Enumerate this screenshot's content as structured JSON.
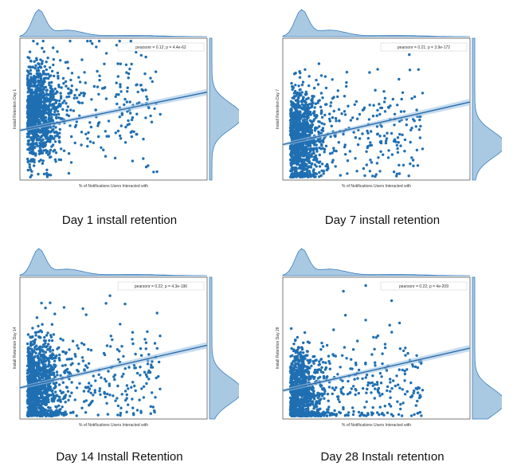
{
  "captions": [
    "Day 1 install retention",
    "Day 7 install retention",
    "Day 14 Install Retention",
    "Day 28 Instalı retentıon"
  ],
  "colors": {
    "points": "#1f6fb2",
    "kde_fill": "#a9c9e3",
    "kde_line": "#3a7fbf",
    "fit_band": "#9ec4e4"
  },
  "chart_data": [
    {
      "type": "scatter",
      "xlabel": "% of Notifications Users Interacted with",
      "ylabel": "Install Retention Day 1",
      "legend": "pearsonr = 0.12; p = 4.4e-62",
      "legend_position": "top-right",
      "grid": false,
      "fit_line": {
        "start": [
          0.0,
          0.35
        ],
        "end": [
          1.0,
          0.62
        ]
      },
      "x_marginal": "right-skewed, peak near 0.15",
      "y_marginal": "peak near 0.45"
    },
    {
      "type": "scatter",
      "xlabel": "% of Notifications Users Interacted with",
      "ylabel": "Install Retention Day 7",
      "legend": "pearsonr = 0.21; p = 3.9e-172",
      "legend_position": "top-right",
      "grid": false,
      "fit_line": {
        "start": [
          0.0,
          0.25
        ],
        "end": [
          1.0,
          0.55
        ]
      },
      "x_marginal": "right-skewed, peak near 0.15",
      "y_marginal": "peak near 0.25"
    },
    {
      "type": "scatter",
      "xlabel": "% of Notifications Users Interacted with",
      "ylabel": "Install Retention Day 14",
      "legend": "pearsonr = 0.22; p = 4.3e-196",
      "legend_position": "top-right",
      "grid": false,
      "fit_line": {
        "start": [
          0.0,
          0.22
        ],
        "end": [
          1.0,
          0.52
        ]
      },
      "x_marginal": "right-skewed, peak near 0.15",
      "y_marginal": "peak near 0.2"
    },
    {
      "type": "scatter",
      "xlabel": "% of Notifications Users Interacted with",
      "ylabel": "Install Retention Day 28",
      "legend": "pearsonr = 0.22; p = 4e-209",
      "legend_position": "top-right",
      "grid": false,
      "fit_line": {
        "start": [
          0.0,
          0.2
        ],
        "end": [
          1.0,
          0.5
        ]
      },
      "x_marginal": "right-skewed, peak near 0.15",
      "y_marginal": "peak near 0.12"
    }
  ]
}
